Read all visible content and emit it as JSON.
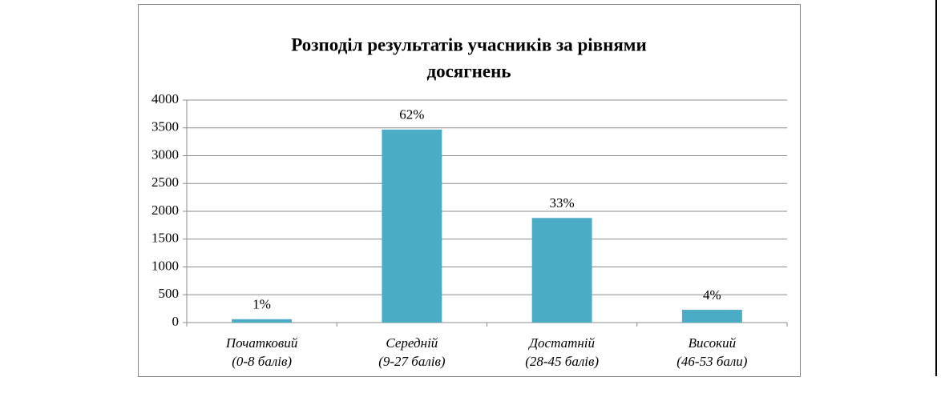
{
  "chart_data": {
    "type": "bar",
    "title": [
      "Розподіл результатів учасників за рівнями",
      "досягнень"
    ],
    "categories": [
      [
        "Початковий",
        "(0-8 балів)"
      ],
      [
        "Середній",
        "(9-27 балів)"
      ],
      [
        "Достатній",
        "(28-45 балів)"
      ],
      [
        "Високий",
        "(46-53 бали)"
      ]
    ],
    "values": [
      60,
      3470,
      1880,
      230
    ],
    "percent_labels": [
      "1%",
      "62%",
      "33%",
      "4%"
    ],
    "color": "#4bacc6",
    "ylim": [
      0,
      4000
    ],
    "yticks": [
      0,
      500,
      1000,
      1500,
      2000,
      2500,
      3000,
      3500,
      4000
    ],
    "grid": true
  }
}
